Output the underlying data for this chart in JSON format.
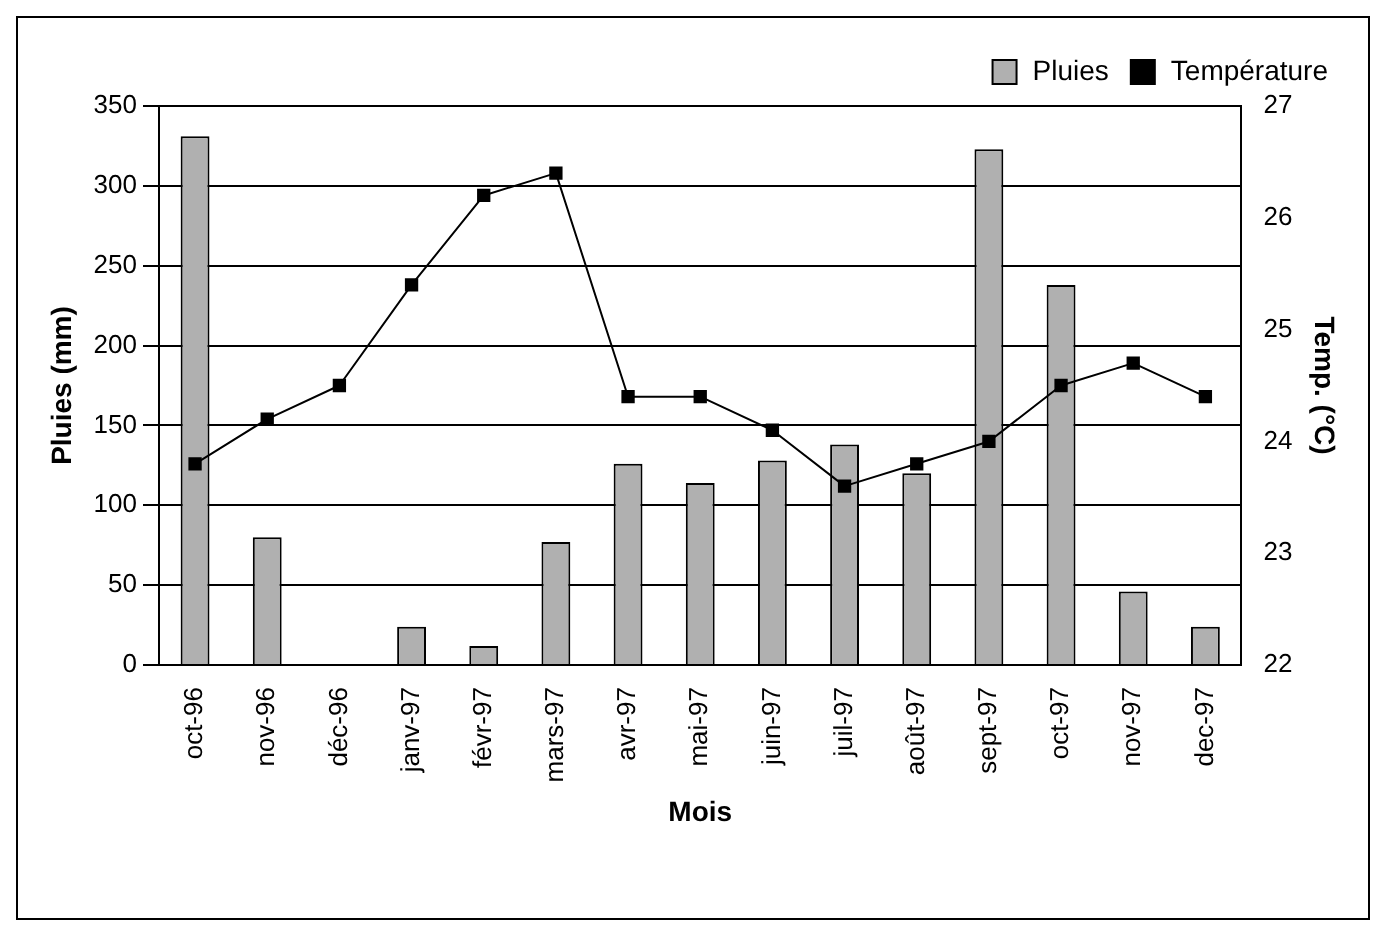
{
  "chart_data": {
    "type": "bar",
    "xlabel": "Mois",
    "ylabel": "Pluies (mm)",
    "y2label": "Temp. (°C)",
    "categories": [
      "oct-96",
      "nov-96",
      "déc-96",
      "janv-97",
      "févr-97",
      "mars-97",
      "avr-97",
      "mai-97",
      "juin-97",
      "juil-97",
      "août-97",
      "sept-97",
      "oct-97",
      "nov-97",
      "dec-97"
    ],
    "series": [
      {
        "name": "Pluies",
        "color": "#b0b0b0",
        "values": [
          331,
          80,
          0,
          24,
          12,
          77,
          126,
          114,
          128,
          138,
          120,
          323,
          238,
          46,
          24
        ]
      },
      {
        "name": "Température",
        "type": "line",
        "axis": "y2",
        "color": "#000000",
        "values": [
          23.8,
          24.2,
          24.5,
          25.4,
          26.2,
          26.4,
          24.4,
          24.4,
          24.1,
          23.6,
          23.8,
          24.0,
          24.5,
          24.7,
          24.4
        ]
      }
    ],
    "ylim": [
      0,
      350
    ],
    "yticks": [
      0,
      50,
      100,
      150,
      200,
      250,
      300,
      350
    ],
    "y2lim": [
      22,
      27
    ],
    "y2ticks": [
      22,
      23,
      24,
      25,
      26,
      27
    ],
    "grid": "y",
    "legend": "top right",
    "marker": "square",
    "line_style": "solid"
  }
}
